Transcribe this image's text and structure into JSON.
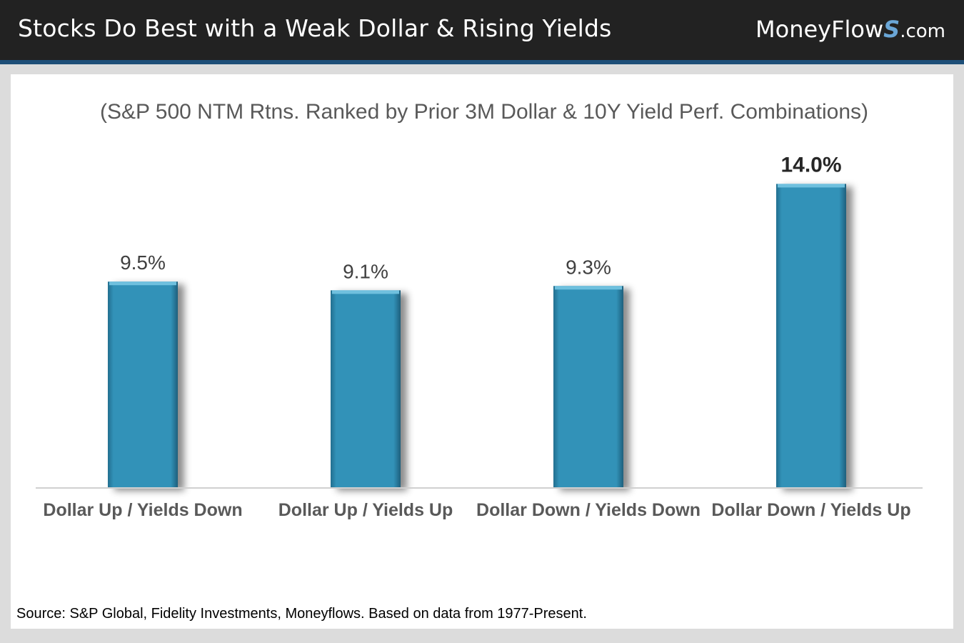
{
  "header": {
    "title": "Stocks Do Best with a Weak Dollar & Rising Yields",
    "brand": {
      "name": "MoneyFlow",
      "s": "S",
      "tld": ".com"
    }
  },
  "chart_data": {
    "type": "bar",
    "title": "(S&P 500 NTM Rtns. Ranked by Prior 3M Dollar & 10Y Yield Perf. Combinations)",
    "categories": [
      "Dollar Up / Yields Down",
      "Dollar Up / Yields Up",
      "Dollar Down / Yields Down",
      "Dollar Down / Yields Up"
    ],
    "values": [
      9.5,
      9.1,
      9.3,
      14.0
    ],
    "data_labels": [
      "9.5%",
      "9.1%",
      "9.3%",
      "14.0%"
    ],
    "highlight_index": 3,
    "ylim": [
      0,
      15
    ],
    "grid": false,
    "legend": "none",
    "bar_color": "#2f8db3"
  },
  "footer": {
    "source": "Source: S&P Global, Fidelity Investments, Moneyflows. Based on data from 1977-Present."
  }
}
